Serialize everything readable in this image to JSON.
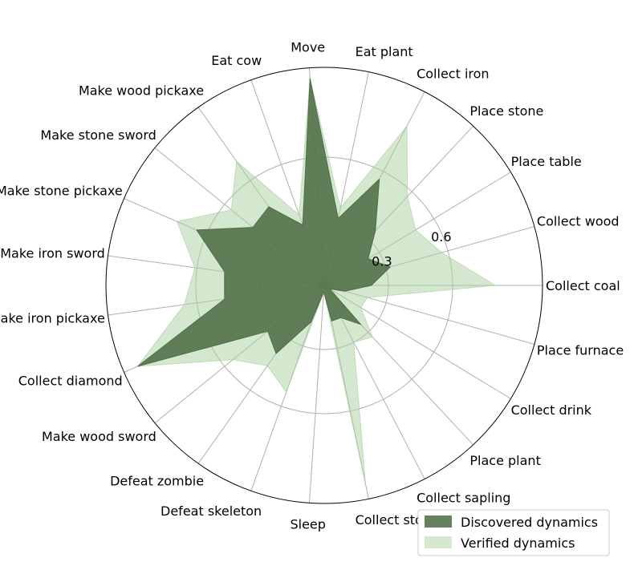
{
  "chart_data": {
    "type": "radar",
    "title": "",
    "categories": [
      "Collect coal",
      "Collect wood",
      "Place table",
      "Place stone",
      "Collect iron",
      "Eat plant",
      "Move",
      "Eat cow",
      "Make wood pickaxe",
      "Make stone sword",
      "Make stone pickaxe",
      "Make iron sword",
      "Make iron pickaxe",
      "Collect diamond",
      "Make wood sword",
      "Defeat zombie",
      "Defeat skeleton",
      "Sleep",
      "Collect stone",
      "Collect sapling",
      "Place plant",
      "Collect drink",
      "Place furnace"
    ],
    "series": [
      {
        "name": "Discovered dynamics",
        "color": "#4f6e45",
        "values": [
          0.22,
          0.32,
          0.24,
          0.35,
          0.56,
          0.32,
          0.97,
          0.3,
          0.45,
          0.43,
          0.65,
          0.47,
          0.47,
          0.95,
          0.34,
          0.39,
          0.18,
          0.03,
          0.17,
          0.17,
          0.25,
          0.03,
          0.1
        ]
      },
      {
        "name": "Verified dynamics",
        "color": "#a9cf9f",
        "values": [
          0.8,
          0.57,
          0.5,
          0.57,
          0.84,
          0.37,
          0.97,
          0.35,
          0.71,
          0.56,
          0.75,
          0.61,
          0.66,
          0.95,
          0.55,
          0.46,
          0.53,
          0.03,
          0.95,
          0.3,
          0.33,
          0.2,
          0.21
        ]
      }
    ],
    "rlim": [
      0,
      1.02
    ],
    "r_ticks": [
      0.3,
      0.6
    ],
    "r_tick_labels": [
      "0.3",
      "0.6"
    ],
    "grid": true,
    "legend_position": "bottom-right"
  }
}
